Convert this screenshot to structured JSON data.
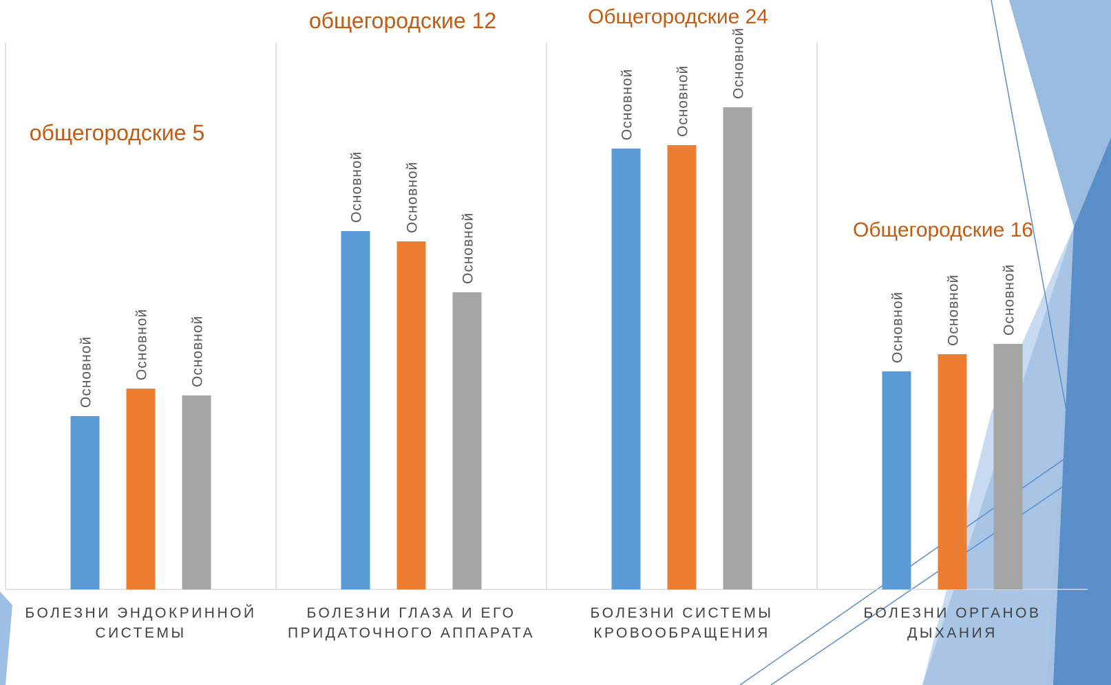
{
  "chart_data": {
    "type": "bar",
    "categories": [
      "БОЛЕЗНИ ЭНДОКРИННОЙ СИСТЕМЫ",
      "БОЛЕЗНИ ГЛАЗА И ЕГО ПРИДАТОЧНОГО АППАРАТА",
      "БОЛЕЗНИ СИСТЕМЫ КРОВООБРАЩЕНИЯ",
      "БОЛЕЗНИ ОРГАНОВ ДЫХАНИЯ"
    ],
    "series": [
      {
        "name": "Основной",
        "color": "#5b9bd5",
        "values": [
          252,
          521,
          641,
          317
        ]
      },
      {
        "name": "Основной",
        "color": "#ed7d31",
        "values": [
          292,
          506,
          646,
          342
        ]
      },
      {
        "name": "Основной",
        "color": "#a5a5a5",
        "values": [
          282,
          432,
          701,
          357
        ]
      }
    ],
    "ylim": [
      0,
      795
    ],
    "annotations": [
      "общегородские 5",
      "общегородские 12",
      "Общегородские 24",
      "Общегородские 16"
    ]
  }
}
